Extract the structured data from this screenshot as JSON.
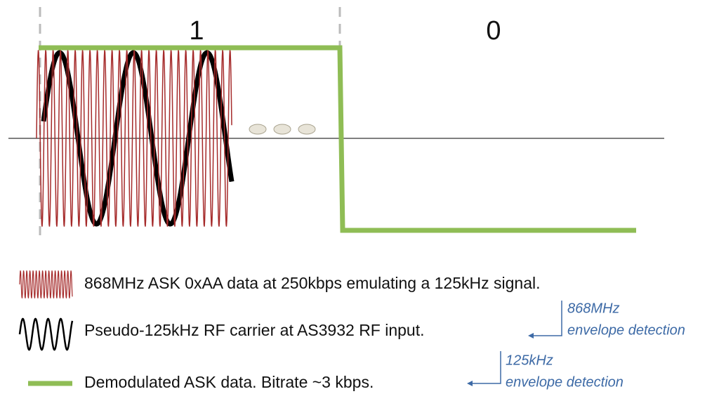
{
  "bits": [
    "1",
    "0"
  ],
  "legend": [
    "868MHz ASK 0xAA data at 250kbps emulating a 125kHz signal.",
    "Pseudo-125kHz RF carrier at AS3932 RF input.",
    "Demodulated ASK data. Bitrate ~3 kbps."
  ],
  "annotations": [
    [
      "868MHz",
      "envelope detection"
    ],
    [
      "125kHz",
      "envelope detection"
    ]
  ]
}
